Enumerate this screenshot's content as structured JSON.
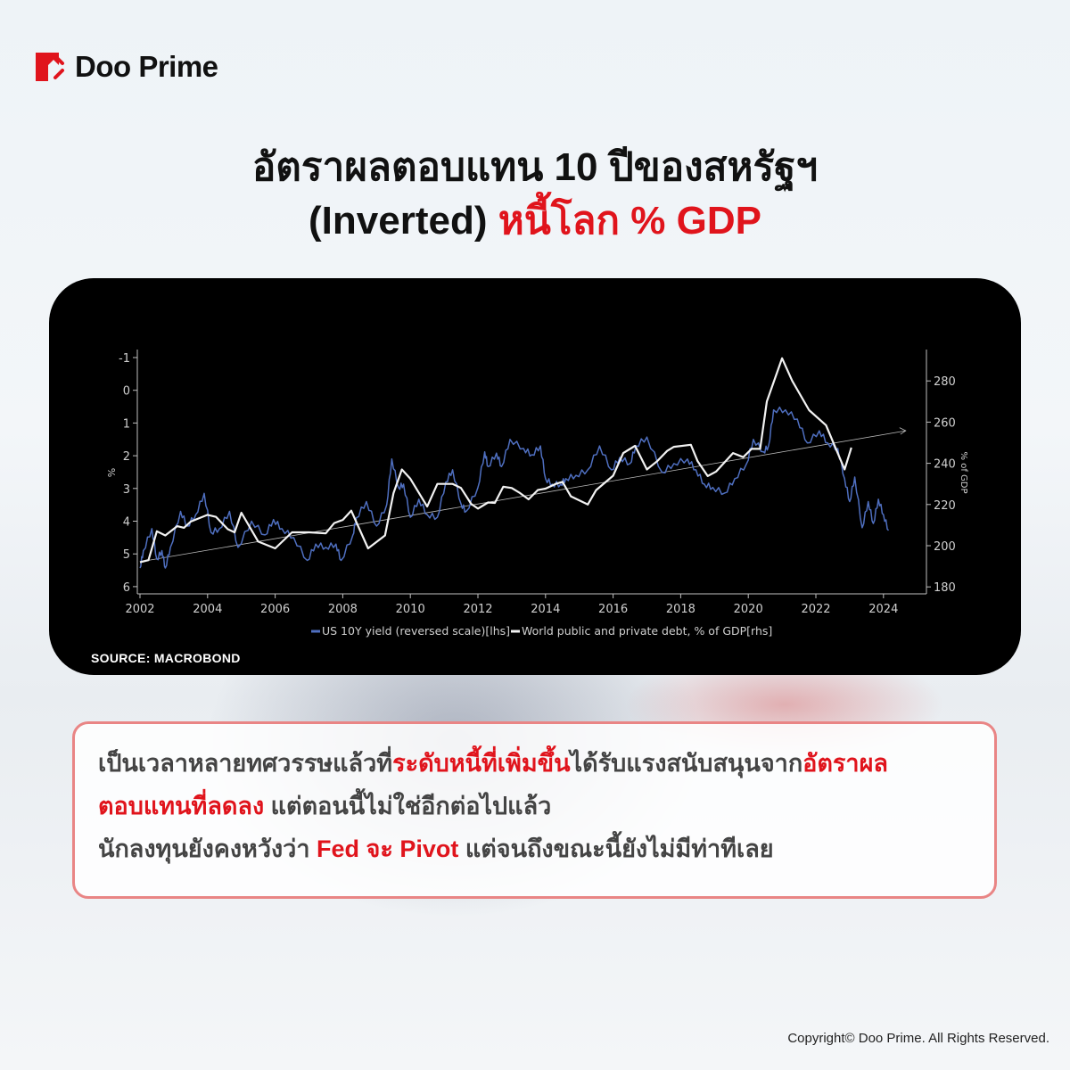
{
  "brand": {
    "name": "Doo Prime",
    "accent": "#e0141c"
  },
  "title": {
    "line1": "อัตราผลตอบแทน 10 ปีของสหรัฐฯ",
    "line2_black": "(Inverted)",
    "line2_red": "หนี้โลก % GDP"
  },
  "source": "SOURCE: MACROBOND",
  "body": {
    "l1_a": "เป็นเวลาหลายทศวรรษแล้วที่",
    "l1_b": "ระดับหนี้ที่เพิ่มขึ้น",
    "l1_c": "ได้รับแรงสนับสนุนจาก",
    "l1_d": "อัตราผล",
    "l2_a": "ตอบแทนที่ลดลง",
    "l2_b": " แต่ตอนนี้ไม่ใช่อีกต่อไปแล้ว",
    "l3_a": "นักลงทุนยังคงหวังว่า ",
    "l3_b": "Fed จะ Pivot",
    "l3_c": " แต่จนถึงขณะนี้ยังไม่มีท่าทีเลย"
  },
  "copyright": "Copyright© Doo Prime. All Rights Reserved.",
  "chart_data": {
    "type": "line",
    "background": "#000000",
    "grid": false,
    "legend_placement": "bottom",
    "xlim": [
      2002,
      2024.7
    ],
    "x_ticks": [
      "2002",
      "2004",
      "2006",
      "2008",
      "2010",
      "2012",
      "2014",
      "2016",
      "2018",
      "2020",
      "2022",
      "2024"
    ],
    "y_left": {
      "label": "%",
      "reversed": true,
      "lim": [
        -1.2,
        6.2
      ],
      "ticks": [
        "-1",
        "0",
        "1",
        "2",
        "3",
        "4",
        "5",
        "6"
      ]
    },
    "y_right": {
      "label": "% of GDP",
      "lim": [
        176,
        295
      ],
      "ticks": [
        "180",
        "200",
        "220",
        "240",
        "260",
        "280"
      ]
    },
    "series": [
      {
        "name": "US 10Y yield (reversed scale)[lhs]",
        "axis": "left",
        "color": "#4f6fc0",
        "x": [
          2002.0,
          2002.1,
          2002.35,
          2002.5,
          2002.65,
          2002.75,
          2002.9,
          2003.2,
          2003.4,
          2003.65,
          2003.9,
          2004.1,
          2004.35,
          2004.65,
          2004.9,
          2005.3,
          2005.7,
          2005.95,
          2006.2,
          2006.55,
          2006.95,
          2007.2,
          2007.5,
          2007.8,
          2007.95,
          2008.3,
          2008.4,
          2008.7,
          2009.0,
          2009.3,
          2009.45,
          2009.65,
          2009.8,
          2010.0,
          2010.25,
          2010.5,
          2010.8,
          2011.05,
          2011.25,
          2011.5,
          2011.65,
          2012.0,
          2012.2,
          2012.3,
          2012.55,
          2012.7,
          2012.95,
          2013.35,
          2013.6,
          2013.85,
          2014.0,
          2014.2,
          2014.45,
          2014.6,
          2014.9,
          2015.25,
          2015.6,
          2015.95,
          2016.2,
          2016.5,
          2016.67,
          2017.0,
          2017.45,
          2017.8,
          2018.2,
          2018.45,
          2018.7,
          2018.95,
          2019.3,
          2019.6,
          2019.95,
          2020.15,
          2020.45,
          2020.6,
          2020.75,
          2021.1,
          2021.45,
          2021.75,
          2022.1,
          2022.35,
          2022.65,
          2022.85,
          2023.0,
          2023.15,
          2023.37,
          2023.55,
          2023.7,
          2023.85,
          2024.0,
          2024.15
        ],
        "values": [
          5.43,
          4.9,
          4.23,
          5.16,
          4.9,
          5.43,
          4.8,
          3.7,
          4.15,
          3.8,
          3.15,
          4.34,
          4.23,
          3.7,
          4.8,
          4.0,
          4.42,
          3.95,
          4.23,
          4.5,
          5.2,
          4.7,
          4.8,
          4.7,
          5.2,
          4.42,
          3.9,
          3.4,
          4.15,
          3.5,
          2.1,
          2.97,
          2.87,
          3.88,
          3.33,
          3.8,
          3.88,
          2.8,
          2.43,
          3.47,
          3.7,
          2.97,
          1.88,
          2.33,
          1.92,
          2.33,
          1.5,
          1.78,
          1.97,
          1.7,
          2.7,
          2.87,
          2.87,
          2.7,
          2.6,
          2.43,
          1.7,
          2.43,
          2.05,
          2.24,
          1.7,
          1.43,
          2.51,
          2.24,
          2.1,
          2.43,
          2.87,
          2.97,
          3.14,
          2.7,
          2.24,
          1.5,
          1.88,
          1.7,
          0.6,
          0.6,
          0.88,
          1.61,
          1.24,
          1.61,
          1.78,
          2.7,
          3.4,
          2.65,
          4.2,
          3.4,
          4.07,
          3.33,
          3.8,
          4.28
        ]
      },
      {
        "name": "World public and private debt, % of GDP[rhs]",
        "axis": "right",
        "color": "#f2f2f2",
        "x": [
          2002.0,
          2002.25,
          2002.5,
          2002.75,
          2003.1,
          2003.3,
          2003.5,
          2004.0,
          2004.25,
          2004.6,
          2004.8,
          2005.0,
          2005.5,
          2006.0,
          2006.5,
          2007.0,
          2007.5,
          2007.75,
          2008.0,
          2008.25,
          2008.75,
          2009.25,
          2009.5,
          2009.75,
          2010.0,
          2010.5,
          2010.8,
          2011.25,
          2011.5,
          2011.8,
          2012.0,
          2012.3,
          2012.5,
          2012.75,
          2013.0,
          2013.25,
          2013.5,
          2013.77,
          2014.0,
          2014.3,
          2014.5,
          2014.75,
          2015.25,
          2015.5,
          2016.0,
          2016.3,
          2016.65,
          2017.0,
          2017.3,
          2017.6,
          2017.8,
          2018.3,
          2018.5,
          2018.8,
          2019.05,
          2019.55,
          2019.85,
          2020.1,
          2020.35,
          2020.55,
          2021.0,
          2021.3,
          2021.8,
          2022.3,
          2022.85,
          2023.05
        ],
        "values": [
          192,
          193,
          207,
          205,
          209.5,
          208.7,
          211.7,
          215,
          214,
          208,
          206.5,
          216,
          202,
          198.7,
          206.5,
          206.5,
          206,
          211,
          212.5,
          217,
          198.7,
          205,
          225.5,
          237,
          232.5,
          219,
          230,
          230,
          228,
          220.3,
          218,
          221,
          220.8,
          228.6,
          228,
          225.5,
          222.5,
          227,
          227.7,
          230,
          231,
          224,
          220,
          227,
          234,
          245,
          248.5,
          237,
          241,
          246,
          248,
          249,
          241,
          233.8,
          236,
          245,
          243,
          247,
          247,
          270,
          291,
          280,
          265.8,
          258.5,
          237,
          247.6
        ]
      }
    ],
    "trendline": {
      "axis": "right",
      "x": [
        2002.0,
        2024.66
      ],
      "values": [
        192.2,
        255.8
      ],
      "arrow": true,
      "color": "#bbbbbb"
    }
  }
}
